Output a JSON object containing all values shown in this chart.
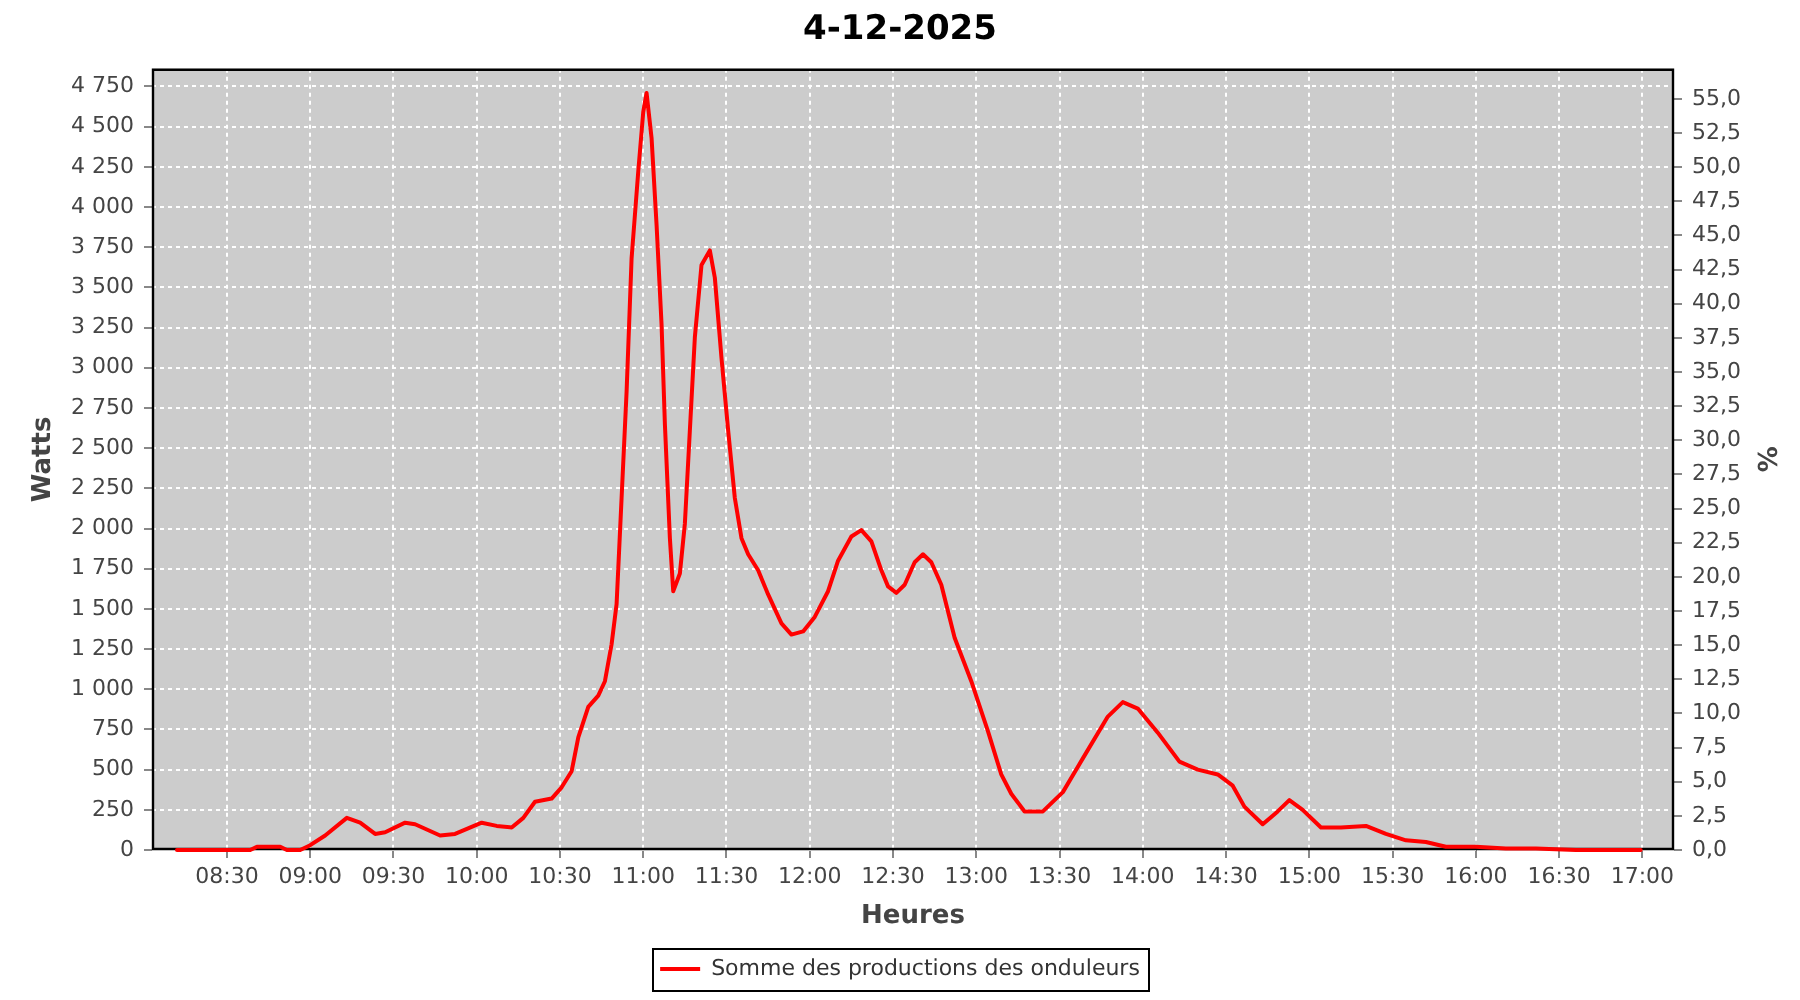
{
  "chart_data": {
    "type": "line",
    "title": "4-12-2025",
    "xlabel": "Heures",
    "ylabel": "Watts",
    "y2label": "%",
    "x": [
      8.2,
      8.64,
      8.68,
      8.82,
      8.86,
      8.94,
      9.0,
      9.09,
      9.22,
      9.3,
      9.39,
      9.45,
      9.57,
      9.63,
      9.78,
      9.87,
      10.03,
      10.12,
      10.21,
      10.28,
      10.35,
      10.45,
      10.51,
      10.57,
      10.61,
      10.67,
      10.73,
      10.77,
      10.81,
      10.84,
      10.87,
      10.9,
      10.93,
      10.97,
      11.0,
      11.02,
      11.05,
      11.08,
      11.11,
      11.13,
      11.16,
      11.18,
      11.22,
      11.25,
      11.28,
      11.31,
      11.35,
      11.4,
      11.43,
      11.47,
      11.51,
      11.55,
      11.59,
      11.63,
      11.69,
      11.75,
      11.83,
      11.89,
      11.96,
      12.03,
      12.11,
      12.17,
      12.25,
      12.31,
      12.37,
      12.43,
      12.47,
      12.52,
      12.57,
      12.63,
      12.68,
      12.73,
      12.79,
      12.87,
      12.97,
      13.07,
      13.15,
      13.21,
      13.29,
      13.4,
      13.52,
      13.64,
      13.79,
      13.88,
      13.97,
      14.09,
      14.22,
      14.33,
      14.45,
      14.54,
      14.61,
      14.72,
      14.81,
      14.88,
      14.96,
      15.07,
      15.19,
      15.34,
      15.46,
      15.58,
      15.7,
      15.82,
      16.0,
      16.18,
      16.36,
      16.6,
      16.99
    ],
    "series": [
      {
        "name": "Somme des productions des onduleurs",
        "color": "#ff0000",
        "values": [
          0,
          0,
          20,
          20,
          0,
          0,
          30,
          90,
          200,
          170,
          100,
          110,
          170,
          160,
          90,
          100,
          170,
          150,
          140,
          200,
          300,
          320,
          390,
          490,
          700,
          890,
          960,
          1050,
          1280,
          1530,
          2190,
          2850,
          3680,
          4220,
          4590,
          4710,
          4430,
          3890,
          3270,
          2650,
          1940,
          1610,
          1720,
          2030,
          2610,
          3190,
          3640,
          3730,
          3560,
          3060,
          2610,
          2190,
          1940,
          1840,
          1740,
          1590,
          1410,
          1340,
          1360,
          1450,
          1610,
          1800,
          1950,
          1990,
          1920,
          1740,
          1640,
          1600,
          1650,
          1790,
          1840,
          1790,
          1650,
          1320,
          1050,
          740,
          470,
          350,
          240,
          240,
          360,
          570,
          830,
          920,
          880,
          730,
          550,
          500,
          470,
          400,
          270,
          160,
          240,
          310,
          250,
          140,
          140,
          150,
          100,
          60,
          50,
          20,
          20,
          10,
          10,
          0,
          0
        ]
      }
    ],
    "xlim": [
      8.05,
      17.19
    ],
    "xticks": [
      {
        "value": 8.5,
        "label": "08:30"
      },
      {
        "value": 9,
        "label": "09:00"
      },
      {
        "value": 9.5,
        "label": "09:30"
      },
      {
        "value": 10,
        "label": "10:00"
      },
      {
        "value": 10.5,
        "label": "10:30"
      },
      {
        "value": 11,
        "label": "11:00"
      },
      {
        "value": 11.5,
        "label": "11:30"
      },
      {
        "value": 12,
        "label": "12:00"
      },
      {
        "value": 12.5,
        "label": "12:30"
      },
      {
        "value": 13,
        "label": "13:00"
      },
      {
        "value": 13.5,
        "label": "13:30"
      },
      {
        "value": 14,
        "label": "14:00"
      },
      {
        "value": 14.5,
        "label": "14:30"
      },
      {
        "value": 15,
        "label": "15:00"
      },
      {
        "value": 15.5,
        "label": "15:30"
      },
      {
        "value": 16,
        "label": "16:00"
      },
      {
        "value": 16.5,
        "label": "16:30"
      },
      {
        "value": 17,
        "label": "17:00"
      }
    ],
    "ylim": [
      0,
      4860
    ],
    "yticks": [
      0,
      250,
      500,
      750,
      {
        "value": 1000,
        "label": "1 000"
      },
      {
        "value": 1250,
        "label": "1 250"
      },
      {
        "value": 1500,
        "label": "1 500"
      },
      {
        "value": 1750,
        "label": "1 750"
      },
      {
        "value": 2000,
        "label": "2 000"
      },
      {
        "value": 2250,
        "label": "2 250"
      },
      {
        "value": 2500,
        "label": "2 500"
      },
      {
        "value": 2750,
        "label": "2 750"
      },
      {
        "value": 3000,
        "label": "3 000"
      },
      {
        "value": 3250,
        "label": "3 250"
      },
      {
        "value": 3500,
        "label": "3 500"
      },
      {
        "value": 3750,
        "label": "3 750"
      },
      {
        "value": 4000,
        "label": "4 000"
      },
      {
        "value": 4250,
        "label": "4 250"
      },
      {
        "value": 4500,
        "label": "4 500"
      },
      {
        "value": 4750,
        "label": "4 750"
      }
    ],
    "y2lim": [
      0,
      57.2
    ],
    "y2ticks": [
      {
        "value": 0,
        "label": "0,0"
      },
      {
        "value": 2.5,
        "label": "2,5"
      },
      {
        "value": 5,
        "label": "5,0"
      },
      {
        "value": 7.5,
        "label": "7,5"
      },
      {
        "value": 10,
        "label": "10,0"
      },
      {
        "value": 12.5,
        "label": "12,5"
      },
      {
        "value": 15,
        "label": "15,0"
      },
      {
        "value": 17.5,
        "label": "17,5"
      },
      {
        "value": 20,
        "label": "20,0"
      },
      {
        "value": 22.5,
        "label": "22,5"
      },
      {
        "value": 25,
        "label": "25,0"
      },
      {
        "value": 27.5,
        "label": "27,5"
      },
      {
        "value": 30,
        "label": "30,0"
      },
      {
        "value": 32.5,
        "label": "32,5"
      },
      {
        "value": 35,
        "label": "35,0"
      },
      {
        "value": 37.5,
        "label": "37,5"
      },
      {
        "value": 40,
        "label": "40,0"
      },
      {
        "value": 42.5,
        "label": "42,5"
      },
      {
        "value": 45,
        "label": "45,0"
      },
      {
        "value": 47.5,
        "label": "47,5"
      },
      {
        "value": 50,
        "label": "50,0"
      },
      {
        "value": 52.5,
        "label": "52,5"
      },
      {
        "value": 55,
        "label": "55,0"
      }
    ],
    "grid": true,
    "legend": "bottom",
    "marker": "none",
    "line_style": "solid"
  }
}
